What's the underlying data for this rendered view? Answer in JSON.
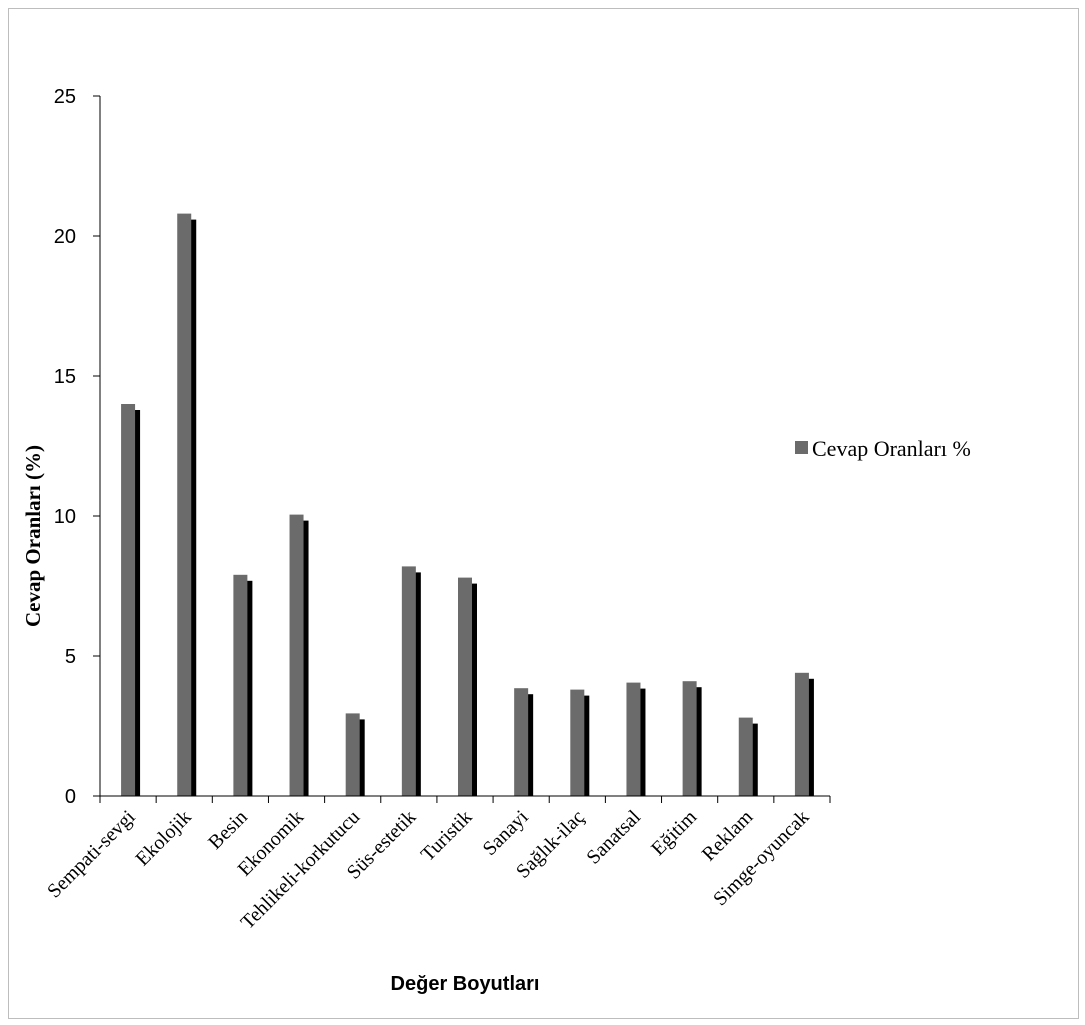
{
  "chart_data": {
    "type": "bar",
    "xlabel": "Değer  Boyutları",
    "ylabel": "Cevap Oranları (%)",
    "ylim": [
      0,
      25
    ],
    "yticks": [
      0,
      5,
      10,
      15,
      20,
      25
    ],
    "grid": false,
    "legend_position": "right",
    "categories": [
      "Sempati-sevgi",
      "Ekolojik",
      "Besin",
      "Ekonomik",
      "Tehlikeli-korkutucu",
      "Süs-estetik",
      "Turistik",
      "Sanayi",
      "Sağlık-ilaç",
      "Sanatsal",
      "Eğitim",
      "Reklam",
      "Simge-oyuncak"
    ],
    "series": [
      {
        "name": "Cevap Oranları %",
        "color": "#6b6b6b",
        "values": [
          14.0,
          20.8,
          7.9,
          10.05,
          2.95,
          8.2,
          7.8,
          3.85,
          3.8,
          4.05,
          4.1,
          2.8,
          4.4
        ]
      }
    ]
  }
}
